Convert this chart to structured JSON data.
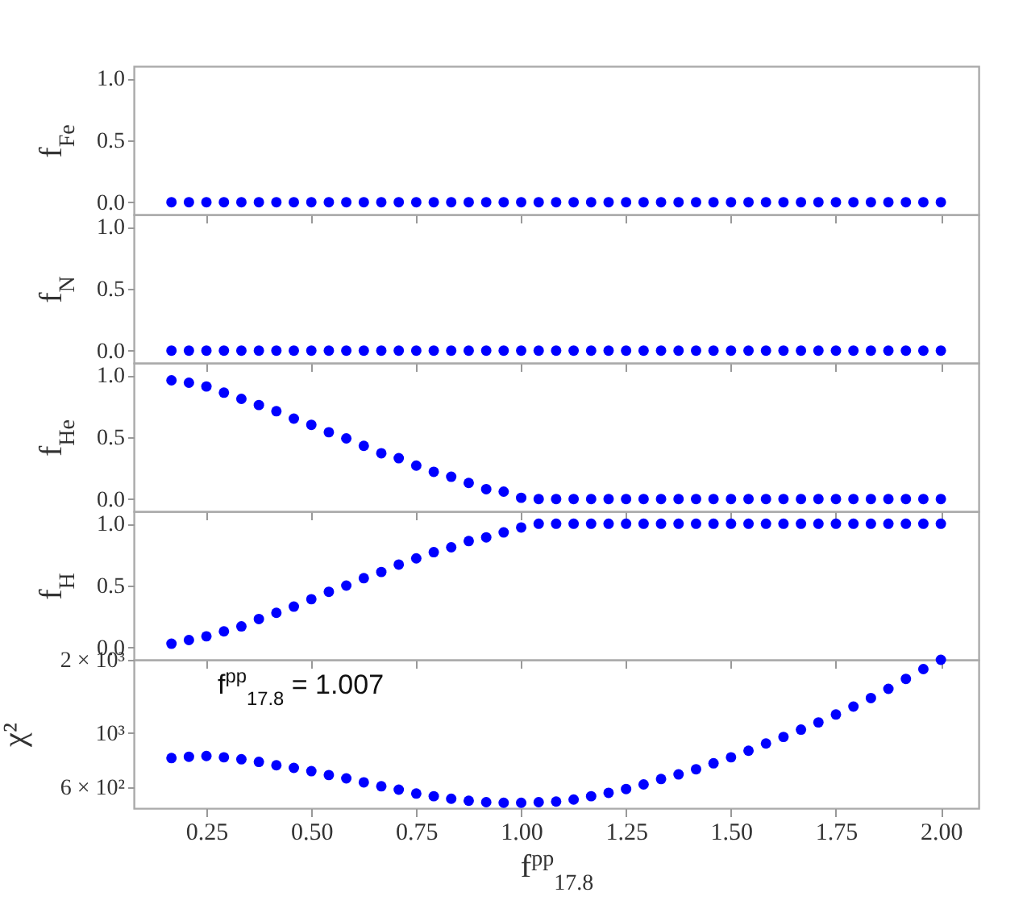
{
  "chart_data": [
    {
      "type": "scatter",
      "ylabel": "f$_{Fe}$",
      "tick_labels": "y",
      "marker": "circle",
      "color": "#0000ff",
      "x": [
        0.1667,
        0.2083,
        0.25,
        0.2917,
        0.3333,
        0.375,
        0.4167,
        0.4583,
        0.5,
        0.5417,
        0.5833,
        0.625,
        0.6667,
        0.7083,
        0.75,
        0.7917,
        0.8333,
        0.875,
        0.9167,
        0.9583,
        1.0,
        1.0417,
        1.0833,
        1.125,
        1.1667,
        1.2083,
        1.25,
        1.2917,
        1.3333,
        1.375,
        1.4167,
        1.4583,
        1.5,
        1.5417,
        1.5833,
        1.625,
        1.6667,
        1.7083,
        1.75,
        1.7917,
        1.8333,
        1.875,
        1.9167,
        1.9583,
        2.0
      ],
      "values": [
        0,
        0,
        0,
        0,
        0,
        0,
        0,
        0,
        0,
        0,
        0,
        0,
        0,
        0,
        0,
        0,
        0,
        0,
        0,
        0,
        0,
        0,
        0,
        0,
        0,
        0,
        0,
        0,
        0,
        0,
        0,
        0,
        0,
        0,
        0,
        0,
        0,
        0,
        0,
        0,
        0,
        0,
        0,
        0,
        0
      ],
      "xlim": [
        0.077,
        2.09
      ],
      "xticks": [
        {
          "value": 0.25,
          "label": null
        },
        {
          "value": 0.5,
          "label": null
        },
        {
          "value": 0.75,
          "label": null
        },
        {
          "value": 1,
          "label": null
        },
        {
          "value": 1.25,
          "label": null
        },
        {
          "value": 1.5,
          "label": null
        },
        {
          "value": 1.75,
          "label": null
        },
        {
          "value": 2,
          "label": null
        }
      ],
      "ylim": [
        -0.1,
        1.1
      ],
      "yticks": [
        {
          "value": 0,
          "label": "0.0"
        },
        {
          "value": 0.5,
          "label": "0.5"
        },
        {
          "value": 1,
          "label": "1.0"
        }
      ]
    },
    {
      "type": "scatter",
      "ylabel": "f$_{N}$",
      "tick_labels": "y",
      "marker": "circle",
      "color": "#0000ff",
      "x": [
        0.1667,
        0.2083,
        0.25,
        0.2917,
        0.3333,
        0.375,
        0.4167,
        0.4583,
        0.5,
        0.5417,
        0.5833,
        0.625,
        0.6667,
        0.7083,
        0.75,
        0.7917,
        0.8333,
        0.875,
        0.9167,
        0.9583,
        1.0,
        1.0417,
        1.0833,
        1.125,
        1.1667,
        1.2083,
        1.25,
        1.2917,
        1.3333,
        1.375,
        1.4167,
        1.4583,
        1.5,
        1.5417,
        1.5833,
        1.625,
        1.6667,
        1.7083,
        1.75,
        1.7917,
        1.8333,
        1.875,
        1.9167,
        1.9583,
        2.0
      ],
      "values": [
        0,
        0,
        0,
        0,
        0,
        0,
        0,
        0,
        0,
        0,
        0,
        0,
        0,
        0,
        0,
        0,
        0,
        0,
        0,
        0,
        0,
        0,
        0,
        0,
        0,
        0,
        0,
        0,
        0,
        0,
        0,
        0,
        0,
        0,
        0,
        0,
        0,
        0,
        0,
        0,
        0,
        0,
        0,
        0,
        0
      ],
      "xlim": [
        0.077,
        2.09
      ],
      "xticks": [
        {
          "value": 0.25,
          "label": null
        },
        {
          "value": 0.5,
          "label": null
        },
        {
          "value": 0.75,
          "label": null
        },
        {
          "value": 1,
          "label": null
        },
        {
          "value": 1.25,
          "label": null
        },
        {
          "value": 1.5,
          "label": null
        },
        {
          "value": 1.75,
          "label": null
        },
        {
          "value": 2,
          "label": null
        }
      ],
      "ylim": [
        -0.1,
        1.1
      ],
      "yticks": [
        {
          "value": 0,
          "label": "0.0"
        },
        {
          "value": 0.5,
          "label": "0.5"
        },
        {
          "value": 1,
          "label": "1.0"
        }
      ]
    },
    {
      "type": "scatter",
      "ylabel": "f$_{He}$",
      "tick_labels": "y",
      "marker": "circle",
      "color": "#0000ff",
      "x": [
        0.1667,
        0.2083,
        0.25,
        0.2917,
        0.3333,
        0.375,
        0.4167,
        0.4583,
        0.5,
        0.5417,
        0.5833,
        0.625,
        0.6667,
        0.7083,
        0.75,
        0.7917,
        0.8333,
        0.875,
        0.9167,
        0.9583,
        1.0,
        1.0417,
        1.0833,
        1.125,
        1.1667,
        1.2083,
        1.25,
        1.2917,
        1.3333,
        1.375,
        1.4167,
        1.4583,
        1.5,
        1.5417,
        1.5833,
        1.625,
        1.6667,
        1.7083,
        1.75,
        1.7917,
        1.8333,
        1.875,
        1.9167,
        1.9583,
        2.0
      ],
      "values": [
        0.96,
        0.94,
        0.91,
        0.86,
        0.81,
        0.76,
        0.71,
        0.65,
        0.6,
        0.54,
        0.49,
        0.43,
        0.37,
        0.33,
        0.27,
        0.22,
        0.18,
        0.13,
        0.08,
        0.06,
        0.01,
        0,
        0,
        0,
        0,
        0,
        0,
        0,
        0,
        0,
        0,
        0,
        0,
        0,
        0,
        0,
        0,
        0,
        0,
        0,
        0,
        0,
        0,
        0,
        0
      ],
      "xlim": [
        0.077,
        2.09
      ],
      "xticks": [
        {
          "value": 0.25,
          "label": null
        },
        {
          "value": 0.5,
          "label": null
        },
        {
          "value": 0.75,
          "label": null
        },
        {
          "value": 1,
          "label": null
        },
        {
          "value": 1.25,
          "label": null
        },
        {
          "value": 1.5,
          "label": null
        },
        {
          "value": 1.75,
          "label": null
        },
        {
          "value": 2,
          "label": null
        }
      ],
      "ylim": [
        -0.1,
        1.1
      ],
      "yticks": [
        {
          "value": 0,
          "label": "0.0"
        },
        {
          "value": 0.5,
          "label": "0.5"
        },
        {
          "value": 1,
          "label": "1.0"
        }
      ]
    },
    {
      "type": "scatter",
      "ylabel": "f$_{H}$",
      "tick_labels": "y",
      "marker": "circle",
      "color": "#0000ff",
      "x": [
        0.1667,
        0.2083,
        0.25,
        0.2917,
        0.3333,
        0.375,
        0.4167,
        0.4583,
        0.5,
        0.5417,
        0.5833,
        0.625,
        0.6667,
        0.7083,
        0.75,
        0.7917,
        0.8333,
        0.875,
        0.9167,
        0.9583,
        1.0,
        1.0417,
        1.0833,
        1.125,
        1.1667,
        1.2083,
        1.25,
        1.2917,
        1.3333,
        1.375,
        1.4167,
        1.4583,
        1.5,
        1.5417,
        1.5833,
        1.625,
        1.6667,
        1.7083,
        1.75,
        1.7917,
        1.8333,
        1.875,
        1.9167,
        1.9583,
        2.0
      ],
      "values": [
        0.03,
        0.06,
        0.09,
        0.13,
        0.17,
        0.23,
        0.28,
        0.33,
        0.39,
        0.45,
        0.5,
        0.56,
        0.61,
        0.67,
        0.72,
        0.77,
        0.81,
        0.86,
        0.89,
        0.93,
        0.97,
        1,
        1,
        1,
        1,
        1,
        1,
        1,
        1,
        1,
        1,
        1,
        1,
        1,
        1,
        1,
        1,
        1,
        1,
        1,
        1,
        1,
        1,
        1,
        1
      ],
      "xlim": [
        0.077,
        2.09
      ],
      "xticks": [
        {
          "value": 0.25,
          "label": null
        },
        {
          "value": 0.5,
          "label": null
        },
        {
          "value": 0.75,
          "label": null
        },
        {
          "value": 1,
          "label": null
        },
        {
          "value": 1.25,
          "label": null
        },
        {
          "value": 1.5,
          "label": null
        },
        {
          "value": 1.75,
          "label": null
        },
        {
          "value": 2,
          "label": null
        }
      ],
      "ylim": [
        -0.1,
        1.1
      ],
      "yticks": [
        {
          "value": 0,
          "label": "0.0"
        },
        {
          "value": 0.5,
          "label": "0.5"
        },
        {
          "value": 1,
          "label": "1.0"
        }
      ]
    },
    {
      "type": "scatter",
      "ylabel": "χ²",
      "xlabel": "f$^{pp}$$_{17.8}$",
      "log": true,
      "marker": "circle",
      "color": "#0000ff",
      "annotations": [
        "f$^{pp}$$_{17.8}$ = 1.007"
      ],
      "x": [
        0.1667,
        0.2083,
        0.25,
        0.2917,
        0.3333,
        0.375,
        0.4167,
        0.4583,
        0.5,
        0.5417,
        0.5833,
        0.625,
        0.6667,
        0.7083,
        0.75,
        0.7917,
        0.8333,
        0.875,
        0.9167,
        0.9583,
        1.0,
        1.0417,
        1.0833,
        1.125,
        1.1667,
        1.2083,
        1.25,
        1.2917,
        1.3333,
        1.375,
        1.4167,
        1.4583,
        1.5,
        1.5417,
        1.5833,
        1.625,
        1.6667,
        1.7083,
        1.75,
        1.7917,
        1.8333,
        1.875,
        1.9167,
        1.9583,
        2.0
      ],
      "values": [
        788,
        798,
        804,
        794,
        779,
        760,
        736,
        718,
        696,
        671,
        650,
        626,
        603,
        584,
        563,
        549,
        536,
        526,
        519,
        516,
        516,
        519,
        522,
        532,
        549,
        567,
        588,
        614,
        646,
        675,
        709,
        750,
        794,
        845,
        905,
        963,
        1032,
        1105,
        1191,
        1284,
        1392,
        1519,
        1669,
        1832,
        2000
      ],
      "xlim": [
        0.077,
        2.09
      ],
      "xticks": [
        0.25,
        {
          "value": 0.5,
          "label": "0.50"
        },
        0.75,
        {
          "value": 1,
          "label": "1.00"
        },
        1.25,
        {
          "value": 1.5,
          "label": "1.50"
        },
        1.75,
        {
          "value": 2,
          "label": "2.00"
        }
      ],
      "ylim": [
        490,
        2000
      ],
      "yticks": [
        {
          "value": 600,
          "label": "6 × 10²"
        },
        {
          "value": 1000,
          "label": "10³"
        },
        {
          "value": 2000,
          "label": "2 × 10³"
        }
      ]
    }
  ]
}
